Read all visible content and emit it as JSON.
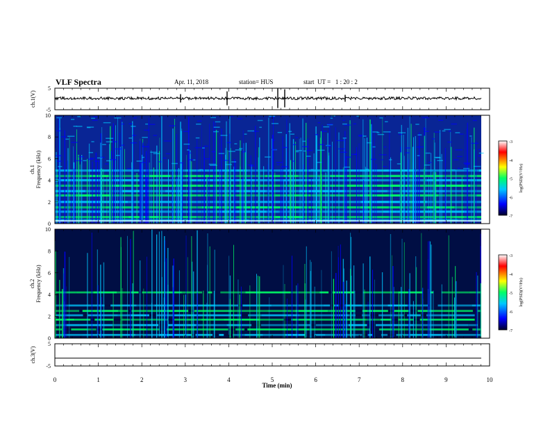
{
  "header": {
    "title": "VLF Spectra",
    "date": "Apr. 11, 2018",
    "station": "station= HUS",
    "start": "start  UT =   1 : 20 : 2"
  },
  "colors": {
    "background": "#00002a",
    "low": "#0000ff",
    "mid": "#00c8ff",
    "green": "#00ff66",
    "high": "#ff0000"
  },
  "chart_data": [
    {
      "type": "line",
      "panel": "ch1-waveform",
      "ylabel": "ch.1(V)",
      "yticks": [
        "5",
        "-5"
      ],
      "ylim": [
        -5,
        5
      ],
      "x": [
        0,
        10
      ],
      "description_level": 0.3
    },
    {
      "type": "heatmap",
      "panel": "ch1-spectrogram",
      "ylabel": "ch.1\nFrequency (kHz)",
      "ylabel_line1": "ch.1",
      "ylabel_line2": "Frequency (kHz)",
      "yticks": [
        "0",
        "2",
        "4",
        "6",
        "8",
        "10"
      ],
      "ylim": [
        0,
        10
      ],
      "xlim": [
        0,
        10
      ],
      "bands_khz": [
        0.3,
        0.6,
        1.1,
        1.5,
        2.0,
        2.6,
        3.0,
        3.5,
        4.0,
        4.4,
        4.9
      ],
      "colorbar": {
        "label": "log(PSD)(V²/Hz)",
        "ticks": [
          "-3",
          "-4",
          "-5",
          "-6",
          "-7"
        ],
        "range": [
          -7,
          -3
        ]
      }
    },
    {
      "type": "heatmap",
      "panel": "ch2-spectrogram",
      "ylabel": "ch.2\nFrequency (kHz)",
      "ylabel_line1": "ch.2",
      "ylabel_line2": "Frequency (kHz)",
      "yticks": [
        "0",
        "2",
        "4",
        "6",
        "8",
        "10"
      ],
      "ylim": [
        0,
        10
      ],
      "xlim": [
        0,
        10
      ],
      "bands_khz": [
        0.3,
        0.8,
        1.2,
        1.7,
        2.1,
        2.5,
        3.0,
        4.2
      ],
      "colorbar": {
        "label": "log(PSD)(V²/Hz)",
        "ticks": [
          "-3",
          "-4",
          "-5",
          "-6",
          "-7"
        ],
        "range": [
          -7,
          -3
        ]
      }
    },
    {
      "type": "line",
      "panel": "ch3-waveform",
      "ylabel": "ch.3(V)",
      "yticks": [
        "5",
        "-5"
      ],
      "ylim": [
        -5,
        5
      ],
      "x": [
        0,
        10
      ],
      "level": -1.5,
      "xlabel": "Time (min)",
      "xticks": [
        "0",
        "1",
        "2",
        "3",
        "4",
        "5",
        "6",
        "7",
        "8",
        "9",
        "10"
      ],
      "xlim": [
        0,
        10
      ]
    }
  ]
}
